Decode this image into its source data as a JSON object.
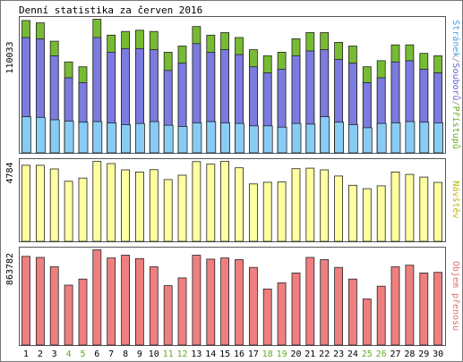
{
  "chart_data": {
    "type": "bar",
    "title": "Denní statistika za červen 2016",
    "categories": [
      "1",
      "2",
      "3",
      "4",
      "5",
      "6",
      "7",
      "8",
      "9",
      "10",
      "11",
      "12",
      "13",
      "14",
      "15",
      "16",
      "17",
      "18",
      "19",
      "20",
      "21",
      "22",
      "23",
      "24",
      "25",
      "26",
      "27",
      "28",
      "29",
      "30"
    ],
    "weekend_days": [
      "4",
      "5",
      "11",
      "12",
      "18",
      "19",
      "25",
      "26"
    ],
    "panels": [
      {
        "id": "top",
        "max_label": "110033",
        "ylim": [
          0,
          110033
        ],
        "legend": [
          {
            "text": "Stránek",
            "color": "#4aa0e0"
          },
          {
            "text": "/",
            "color": "#888888"
          },
          {
            "text": "Souborů",
            "color": "#6060d0"
          },
          {
            "text": "/",
            "color": "#888888"
          },
          {
            "text": "Přístupů",
            "color": "#66aa22"
          }
        ],
        "series": [
          {
            "name": "Přístupů",
            "color": "#77bb33",
            "values": [
              109000,
              107000,
              92000,
              75000,
              71000,
              110033,
              97000,
              100000,
              101000,
              100000,
              83000,
              88000,
              104000,
              97000,
              99000,
              95000,
              85000,
              80000,
              83000,
              94000,
              99000,
              99000,
              91000,
              88000,
              71000,
              76000,
              89000,
              89000,
              82000,
              80000
            ]
          },
          {
            "name": "Souborů",
            "color": "#7b7be0",
            "values": [
              95000,
              94000,
              80000,
              62000,
              58000,
              95000,
              83000,
              86000,
              86000,
              85000,
              68000,
              74000,
              90000,
              83000,
              85000,
              81000,
              71000,
              66000,
              69000,
              80000,
              84000,
              85000,
              77000,
              74000,
              58000,
              62000,
              75000,
              76000,
              69000,
              66000
            ]
          },
          {
            "name": "Stránek",
            "color": "#88ccf5",
            "values": [
              30000,
              29500,
              27500,
              26500,
              25500,
              26000,
              25000,
              23500,
              24500,
              26000,
              23000,
              22000,
              25000,
              26000,
              25000,
              24500,
              22500,
              22500,
              21500,
              24500,
              24000,
              30000,
              25500,
              23500,
              21000,
              24500,
              25000,
              26000,
              25500,
              25000
            ]
          }
        ]
      },
      {
        "id": "mid",
        "max_label": "4784",
        "ylim": [
          0,
          4784
        ],
        "legend": [
          {
            "text": "Návštěv",
            "color": "#b8b800"
          }
        ],
        "series": [
          {
            "name": "Návštěv",
            "color": "#ffffa0",
            "values": [
              4550,
              4550,
              4330,
              3600,
              3790,
              4784,
              4650,
              4280,
              4150,
              4290,
              3700,
              3960,
              4770,
              4620,
              4784,
              4400,
              3440,
              3540,
              3560,
              4350,
              4380,
              4280,
              3910,
              3360,
              3160,
              3330,
              4150,
              4010,
              3850,
              3530
            ]
          }
        ]
      },
      {
        "id": "bot",
        "max_label": "863782",
        "ylim": [
          0,
          863782
        ],
        "legend": [
          {
            "text": "Objem přenosu",
            "color": "#e07070"
          }
        ],
        "series": [
          {
            "name": "Objem přenosu",
            "color": "#ef7f7f",
            "values": [
              805000,
              795000,
              710000,
              545000,
              600000,
              863782,
              790000,
              815000,
              785000,
              710000,
              540000,
              610000,
              815000,
              780000,
              790000,
              775000,
              705000,
              510000,
              565000,
              655000,
              795000,
              775000,
              705000,
              600000,
              420000,
              535000,
              710000,
              725000,
              655000,
              660000
            ]
          }
        ]
      }
    ]
  }
}
